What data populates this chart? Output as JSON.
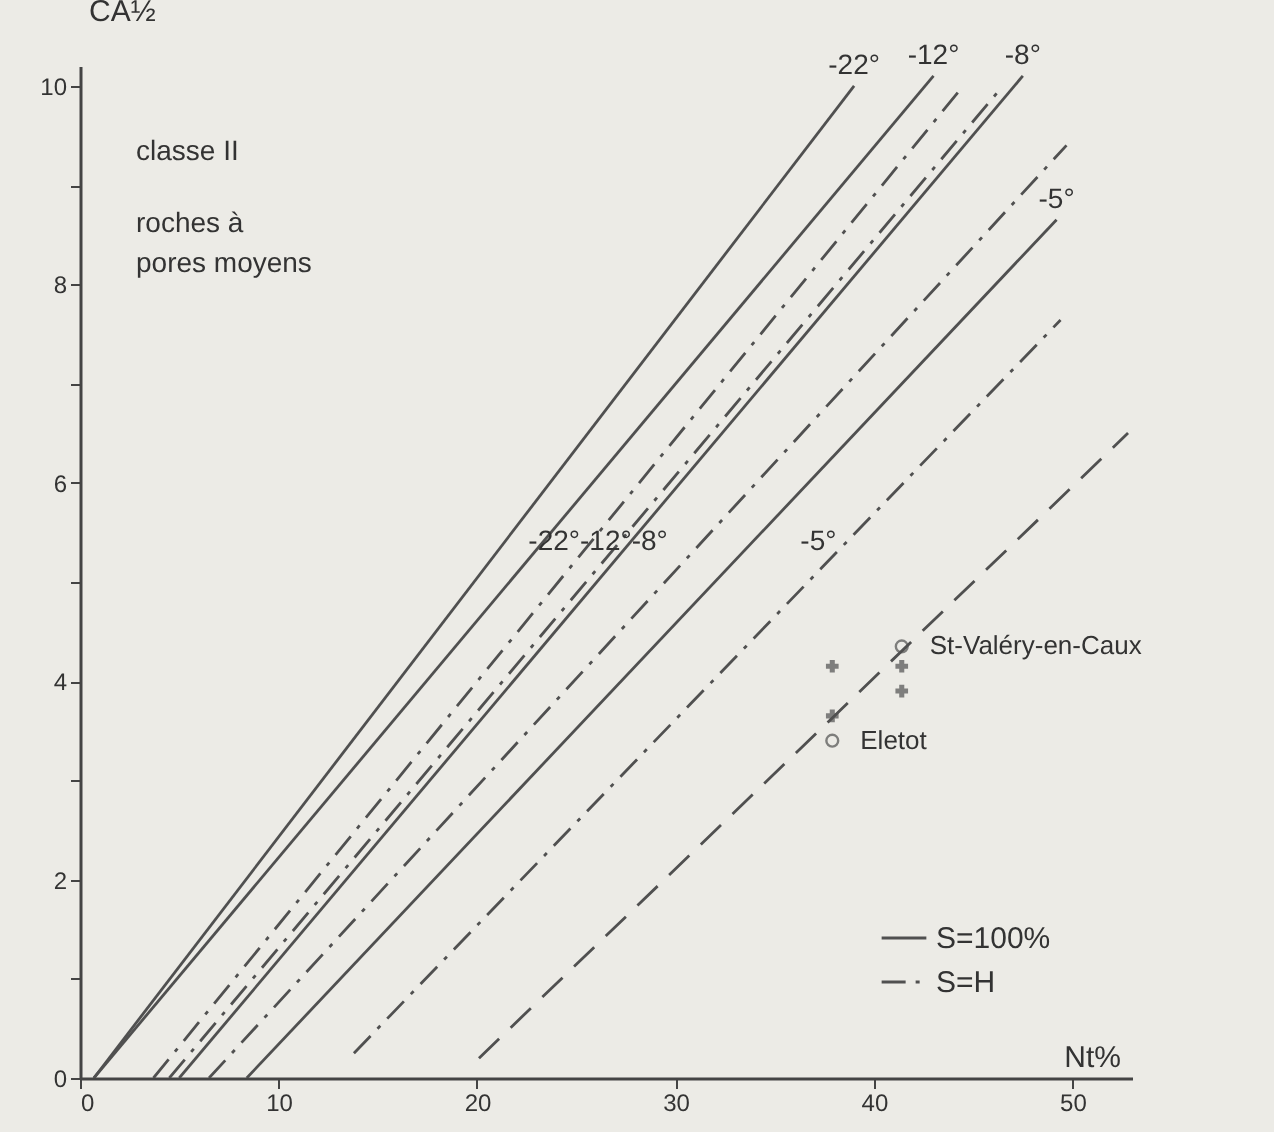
{
  "chart_data": {
    "type": "line",
    "xlabel": "Nt%",
    "ylabel": "CA½",
    "xlim": [
      0,
      53
    ],
    "ylim": [
      0,
      10.2
    ],
    "xticks": [
      0,
      10,
      20,
      30,
      40,
      50
    ],
    "yticks": [
      0,
      {
        "value": 1,
        "label": null
      },
      2,
      {
        "value": 3,
        "label": null
      },
      4,
      {
        "value": 5,
        "label": null
      },
      6,
      {
        "value": 7,
        "label": null
      },
      8,
      {
        "value": 9,
        "label": null
      },
      10
    ],
    "legend": "bottom right",
    "series": [
      {
        "name": "S=100%",
        "line_style": "solid",
        "color": "#505050",
        "x": [
          0.7,
          39
        ],
        "values": [
          0,
          10
        ]
      },
      {
        "line_style": "solid",
        "color": "#505050",
        "x": [
          0.7,
          43
        ],
        "values": [
          0,
          10.1
        ]
      },
      {
        "line_style": "solid",
        "color": "#505050",
        "x": [
          5,
          47.5
        ],
        "values": [
          0,
          10.1
        ]
      },
      {
        "line_style": "solid",
        "color": "#505050",
        "x": [
          8.4,
          49.2
        ],
        "values": [
          0,
          8.65
        ]
      },
      {
        "name": "S=H",
        "line_style": "dashdot",
        "color": "#505050",
        "x": [
          3.7,
          44.5
        ],
        "values": [
          0,
          10
        ]
      },
      {
        "line_style": "dashdot",
        "color": "#505050",
        "x": [
          4.5,
          46.5
        ],
        "values": [
          0,
          10
        ]
      },
      {
        "line_style": "dashdot",
        "color": "#505050",
        "x": [
          6.5,
          49.7
        ],
        "values": [
          0,
          9.4
        ]
      },
      {
        "line_style": "dashdot",
        "color": "#505050",
        "x": [
          13.8,
          49.4
        ],
        "values": [
          0.25,
          7.64
        ]
      },
      {
        "line_style": "dashed",
        "color": "#505050",
        "x": [
          20.1,
          52.8
        ],
        "values": [
          0.2,
          6.5
        ]
      },
      {
        "name": "St-Valéry-en-Caux",
        "type": "scatter",
        "marker": "circle",
        "color": "#505050",
        "x": [
          41.4
        ],
        "values": [
          4.35
        ]
      },
      {
        "name": "Eletot",
        "type": "scatter",
        "marker": "circle",
        "color": "#505050",
        "x": [
          37.9
        ],
        "values": [
          3.4
        ]
      },
      {
        "type": "scatter",
        "marker": "cross",
        "color": "#505050",
        "x": [
          37.9,
          37.9,
          41.4,
          41.4
        ],
        "values": [
          3.65,
          4.15,
          3.9,
          4.15
        ]
      }
    ],
    "annotations": [
      "classe II",
      "roches à",
      "pores moyens",
      {
        "text": "-22°",
        "x": 39,
        "y": 10
      },
      {
        "text": "-12°",
        "x": 43,
        "y": 10.1
      },
      {
        "text": "-8°",
        "x": 47.5,
        "y": 10.1
      },
      {
        "text": "-5°",
        "x": 49.2,
        "y": 8.65
      },
      {
        "text": "-22°-12°-8°",
        "x": 26.1,
        "y": 5.2
      },
      {
        "text": "-5°",
        "x": 37.2,
        "y": 5.2
      }
    ]
  }
}
